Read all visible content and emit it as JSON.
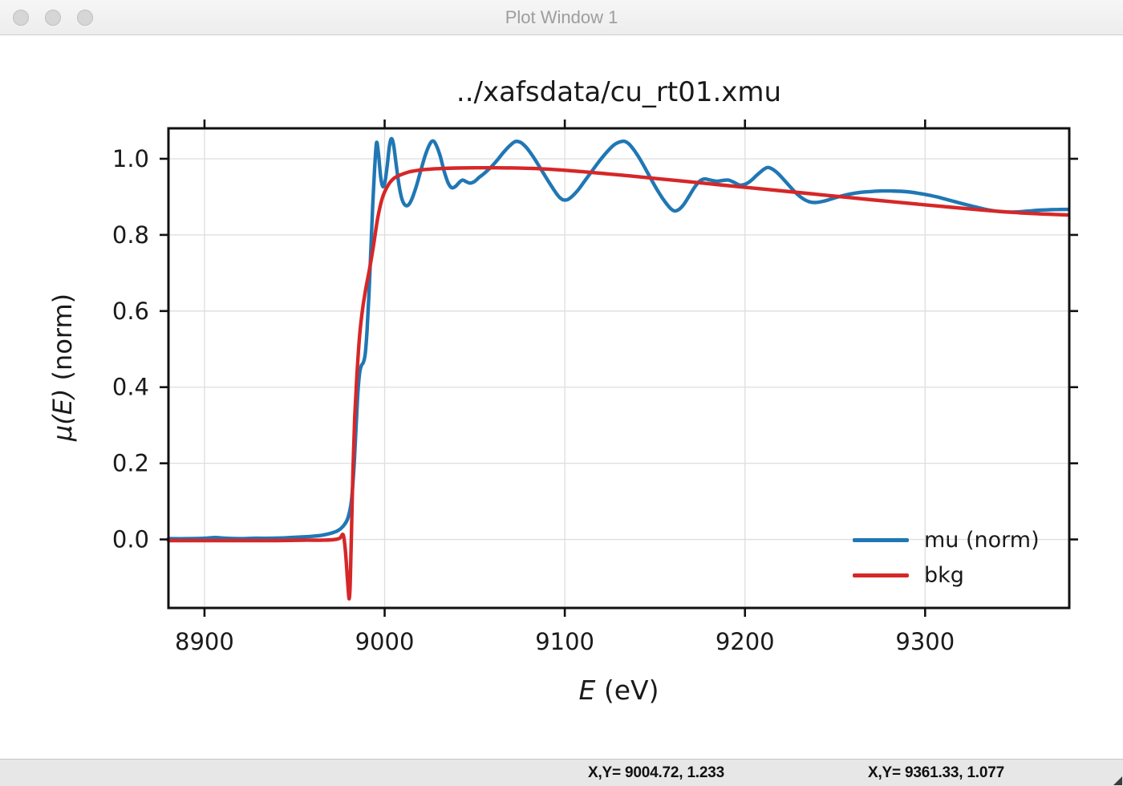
{
  "window": {
    "title": "Plot Window 1",
    "traffic_lights": [
      "close",
      "minimize",
      "zoom"
    ]
  },
  "chart_data": {
    "type": "line",
    "title": "../xafsdata/cu_rt01.xmu",
    "xlabel_math": "E",
    "xlabel_rest": " (eV)",
    "ylabel_math": "μ(E)",
    "ylabel_rest": " (norm)",
    "xlim": [
      8880,
      9380
    ],
    "ylim": [
      -0.18,
      1.08
    ],
    "x_ticks": [
      8900,
      9000,
      9100,
      9200,
      9300
    ],
    "x_tick_labels": [
      "8900",
      "9000",
      "9100",
      "9200",
      "9300"
    ],
    "y_ticks": [
      0.0,
      0.2,
      0.4,
      0.6,
      0.8,
      1.0
    ],
    "y_tick_labels": [
      "0.0",
      "0.2",
      "0.4",
      "0.6",
      "0.8",
      "1.0"
    ],
    "grid": true,
    "grid_color": "#dedede",
    "axis_color": "#111111",
    "legend_position": "lower right",
    "series": [
      {
        "name": "mu (norm)",
        "color": "#2077b4",
        "x": [
          8880,
          8890,
          8900,
          8906,
          8912,
          8920,
          8928,
          8936,
          8944,
          8952,
          8959,
          8965,
          8970,
          8974,
          8977,
          8979.5,
          8981.5,
          8983,
          8984.2,
          8985.2,
          8986.2,
          8987.2,
          8988.2,
          8989.2,
          8990.2,
          8991.3,
          8992.4,
          8993.4,
          8994.4,
          8995.5,
          8996.6,
          8997.8,
          8999,
          9000.2,
          9001.5,
          9002.7,
          9003.8,
          9005,
          9006.4,
          9008,
          9009.6,
          9011.2,
          9013,
          9015,
          9017.4,
          9020,
          9022.6,
          9025,
          9026.8,
          9028.6,
          9030.8,
          9033,
          9035.2,
          9037.2,
          9039.2,
          9041.2,
          9043.2,
          9045.2,
          9047.4,
          9049.8,
          9052.4,
          9055.4,
          9058.8,
          9062.4,
          9066,
          9069.4,
          9072.4,
          9075,
          9077.6,
          9080.6,
          9084,
          9087.6,
          9091,
          9094,
          9096.8,
          9099.2,
          9101.6,
          9104.2,
          9107.2,
          9110.8,
          9114.8,
          9119.2,
          9123.4,
          9127.2,
          9130.4,
          9133,
          9135.6,
          9138.4,
          9141.6,
          9145.2,
          9149,
          9152.6,
          9155.8,
          9158.6,
          9161,
          9163.4,
          9166,
          9169,
          9172,
          9174.8,
          9177.6,
          9180.8,
          9184.2,
          9187.6,
          9190.8,
          9194,
          9197,
          9200,
          9203.2,
          9206.6,
          9209.8,
          9212.4,
          9215.2,
          9218.2,
          9221.6,
          9225.2,
          9229,
          9232.6,
          9235.8,
          9238.8,
          9242,
          9245.6,
          9249.6,
          9254.2,
          9259.2,
          9264.6,
          9270.2,
          9275.8,
          9281.2,
          9286.6,
          9291.8,
          9296.8,
          9301.6,
          9306.4,
          9311.2,
          9316,
          9320.8,
          9325.6,
          9330.4,
          9335.2,
          9340,
          9344.8,
          9349.6,
          9354.4,
          9359.2,
          9364,
          9369,
          9374,
          9379
        ],
        "y": [
          0.002,
          0.002,
          0.003,
          0.005,
          0.003,
          0.002,
          0.003,
          0.003,
          0.004,
          0.006,
          0.008,
          0.011,
          0.016,
          0.023,
          0.035,
          0.055,
          0.1,
          0.19,
          0.3,
          0.39,
          0.44,
          0.458,
          0.465,
          0.487,
          0.545,
          0.645,
          0.77,
          0.88,
          0.97,
          1.042,
          1.012,
          0.952,
          0.927,
          0.94,
          0.985,
          1.035,
          1.053,
          1.035,
          0.985,
          0.93,
          0.894,
          0.879,
          0.878,
          0.893,
          0.925,
          0.968,
          1.01,
          1.038,
          1.047,
          1.036,
          1.008,
          0.968,
          0.937,
          0.924,
          0.927,
          0.937,
          0.944,
          0.94,
          0.936,
          0.94,
          0.951,
          0.962,
          0.977,
          0.996,
          1.017,
          1.034,
          1.045,
          1.044,
          1.035,
          1.018,
          0.994,
          0.966,
          0.94,
          0.918,
          0.9,
          0.892,
          0.893,
          0.902,
          0.917,
          0.94,
          0.966,
          0.994,
          1.018,
          1.036,
          1.044,
          1.046,
          1.039,
          1.023,
          1.0,
          0.97,
          0.937,
          0.908,
          0.886,
          0.87,
          0.863,
          0.867,
          0.88,
          0.902,
          0.925,
          0.941,
          0.947,
          0.944,
          0.941,
          0.943,
          0.944,
          0.938,
          0.931,
          0.933,
          0.942,
          0.957,
          0.97,
          0.977,
          0.973,
          0.962,
          0.945,
          0.926,
          0.907,
          0.894,
          0.887,
          0.885,
          0.887,
          0.891,
          0.897,
          0.903,
          0.908,
          0.912,
          0.914,
          0.9155,
          0.9155,
          0.9145,
          0.9125,
          0.909,
          0.905,
          0.9,
          0.894,
          0.888,
          0.882,
          0.876,
          0.8705,
          0.8655,
          0.862,
          0.8602,
          0.8602,
          0.8615,
          0.8635,
          0.8652,
          0.8662,
          0.8668,
          0.867
        ]
      },
      {
        "name": "bkg",
        "color": "#d62728",
        "x": [
          8880,
          8900,
          8920,
          8940,
          8955,
          8965,
          8971,
          8975,
          8977,
          8978.2,
          8979.3,
          8980,
          8980.4,
          8980.9,
          8981.6,
          8982.4,
          8983.4,
          8984.6,
          8986,
          8987.6,
          8989.4,
          8991.4,
          8993.6,
          8996,
          8998.6,
          9001.6,
          9005,
          9009,
          9013.6,
          9019,
          9025,
          9032,
          9040,
          9050,
          9062,
          9075,
          9090,
          9105,
          9120,
          9135,
          9150,
          9165,
          9180,
          9195,
          9210,
          9225,
          9240,
          9255,
          9270,
          9285,
          9300,
          9315,
          9330,
          9345,
          9357,
          9368,
          9379
        ],
        "y": [
          -0.003,
          -0.003,
          -0.003,
          -0.003,
          -0.002,
          -0.002,
          -0.001,
          0.003,
          0.012,
          -0.03,
          -0.1,
          -0.145,
          -0.154,
          -0.115,
          0.02,
          0.18,
          0.32,
          0.43,
          0.53,
          0.6,
          0.655,
          0.705,
          0.765,
          0.84,
          0.895,
          0.928,
          0.948,
          0.958,
          0.9655,
          0.97,
          0.9728,
          0.9745,
          0.9757,
          0.9763,
          0.9763,
          0.9755,
          0.973,
          0.968,
          0.962,
          0.9555,
          0.9485,
          0.9415,
          0.9345,
          0.9275,
          0.9205,
          0.9135,
          0.9065,
          0.8995,
          0.8925,
          0.8858,
          0.879,
          0.8725,
          0.866,
          0.8605,
          0.8568,
          0.8545,
          0.8525
        ]
      }
    ]
  },
  "statusbar": {
    "readouts": [
      "X,Y= 9004.72, 1.233",
      "X,Y= 9361.33, 1.077"
    ]
  }
}
